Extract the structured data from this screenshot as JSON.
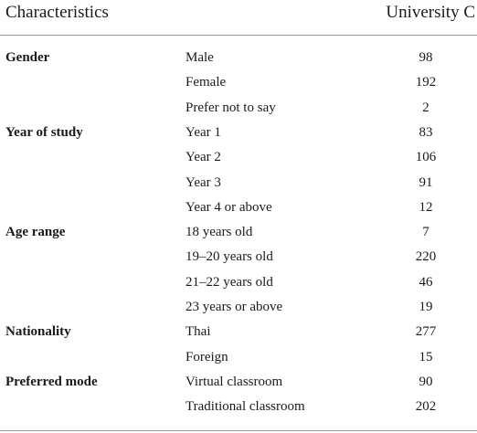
{
  "table": {
    "header": [
      "Characteristics",
      "University C"
    ],
    "groups": [
      {
        "label": "Gender",
        "rows": [
          {
            "label": "Male",
            "value": 98
          },
          {
            "label": "Female",
            "value": 192
          },
          {
            "label": "Prefer not to say",
            "value": 2
          }
        ]
      },
      {
        "label": "Year of study",
        "rows": [
          {
            "label": "Year 1",
            "value": 83
          },
          {
            "label": "Year 2",
            "value": 106
          },
          {
            "label": "Year 3",
            "value": 91
          },
          {
            "label": "Year 4 or above",
            "value": 12
          }
        ]
      },
      {
        "label": "Age range",
        "rows": [
          {
            "label": "18 years old",
            "value": 7
          },
          {
            "label": "19–20 years old",
            "value": 220
          },
          {
            "label": "21–22 years old",
            "value": 46
          },
          {
            "label": "23 years or above",
            "value": 19
          }
        ]
      },
      {
        "label": "Nationality",
        "rows": [
          {
            "label": "Thai",
            "value": 277
          },
          {
            "label": "Foreign",
            "value": 15
          }
        ]
      },
      {
        "label": "Preferred mode",
        "rows": [
          {
            "label": "Virtual classroom",
            "value": 90
          },
          {
            "label": "Traditional classroom",
            "value": 202
          }
        ]
      }
    ]
  }
}
